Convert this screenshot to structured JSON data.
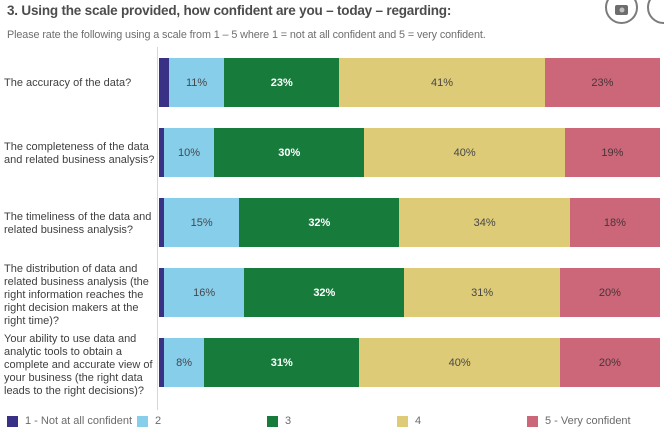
{
  "header": {
    "title": "3. Using the scale provided, how confident are you – today – regarding:",
    "subtitle": "Please rate the following using a scale from 1 – 5 where 1 = not at all confident and 5 = very confident.",
    "buttons": [
      {
        "icon": "camera-icon"
      },
      {
        "icon": "partial-circle-button"
      }
    ]
  },
  "colors": {
    "title_text": "#4c4c4c",
    "subtitle_text": "#6e6e6e",
    "axis_line": "#d6d6d6",
    "row_label_text": "#404040",
    "legend_text": "#6b6b6b"
  },
  "chart_data": {
    "type": "bar",
    "orientation": "horizontal-stacked",
    "title": "3. Using the scale provided, how confident are you – today – regarding:",
    "subtitle": "Please rate the following using a scale from 1 – 5 where 1 = not at all confident and 5 = very confident.",
    "unit": "%",
    "xlim": [
      0,
      100
    ],
    "grid": false,
    "legend_position": "bottom",
    "series_meta": [
      {
        "name": "1 - Not at all confident",
        "color": "#393185",
        "label_color": "#ffffff",
        "label_bold": false
      },
      {
        "name": "2",
        "color": "#87ceeb",
        "label_color": "#474747",
        "label_bold": false
      },
      {
        "name": "3",
        "color": "#177b3c",
        "label_color": "#ffffff",
        "label_bold": true
      },
      {
        "name": "4",
        "color": "#ddcb77",
        "label_color": "#474747",
        "label_bold": false
      },
      {
        "name": "5 - Very confident",
        "color": "#cb6778",
        "label_color": "#4a3338",
        "label_bold": false
      }
    ],
    "categories": [
      "The accuracy of the data?",
      "The completeness of the data and related business analysis?",
      "The timeliness of the data and related business analysis?",
      "The distribution of data and related business analysis (the right information reaches the right decision makers at the right time)?",
      "Your ability to use data and analytic tools to obtain a complete and accurate view of your business (the right data leads to the right decisions)?"
    ],
    "rows": [
      {
        "values": [
          2,
          11,
          23,
          41,
          23
        ],
        "labels": [
          "",
          "11%",
          "23%",
          "41%",
          "23%"
        ]
      },
      {
        "values": [
          1,
          10,
          30,
          40,
          19
        ],
        "labels": [
          "",
          "10%",
          "30%",
          "40%",
          "19%"
        ]
      },
      {
        "values": [
          1,
          15,
          32,
          34,
          18
        ],
        "labels": [
          "",
          "15%",
          "32%",
          "34%",
          "18%"
        ]
      },
      {
        "values": [
          1,
          16,
          32,
          31,
          20
        ],
        "labels": [
          "",
          "16%",
          "32%",
          "31%",
          "20%"
        ]
      },
      {
        "values": [
          1,
          8,
          31,
          40,
          20
        ],
        "labels": [
          "",
          "8%",
          "31%",
          "40%",
          "20%"
        ]
      }
    ],
    "legend": [
      "1 - Not at all confident",
      "2",
      "3",
      "4",
      "5 - Very confident"
    ]
  }
}
